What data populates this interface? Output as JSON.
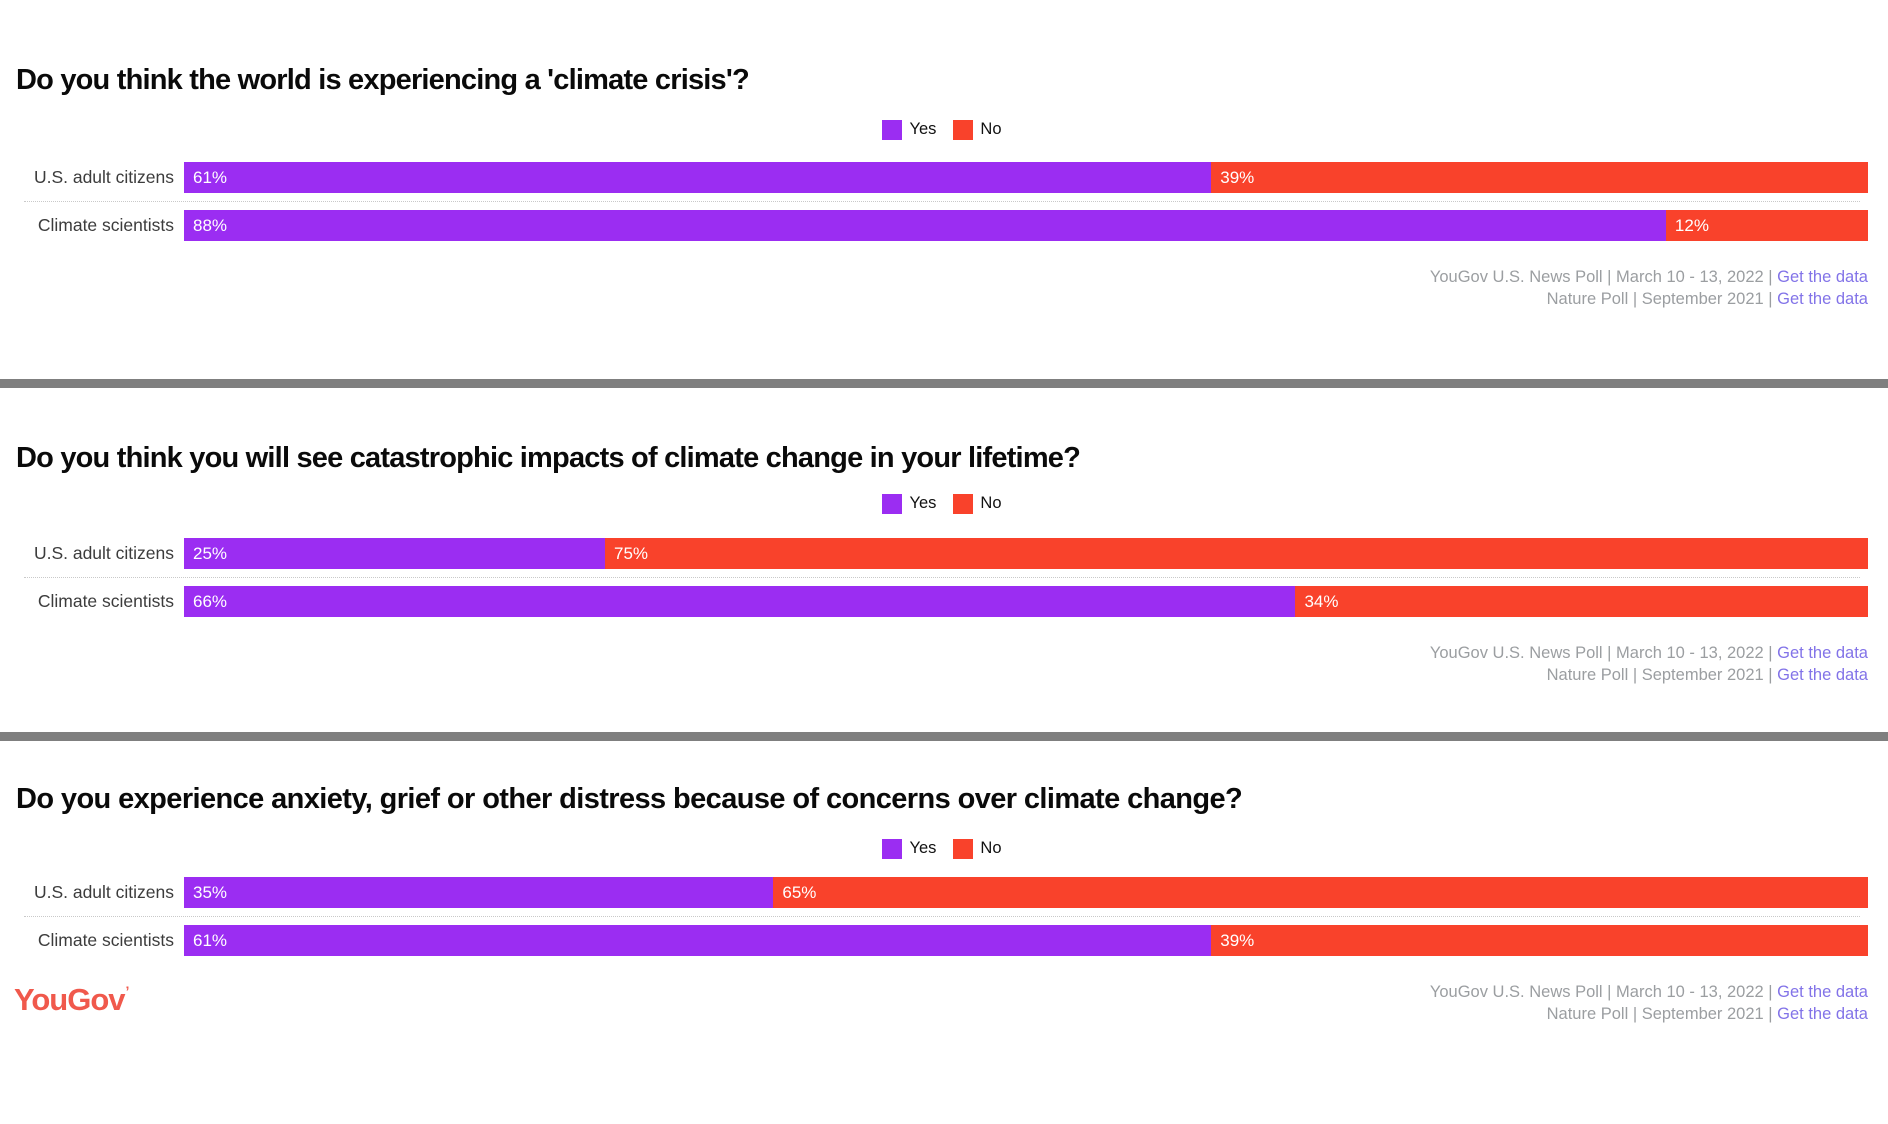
{
  "legend": {
    "yes_label": "Yes",
    "no_label": "No"
  },
  "colors": {
    "yes": "#9B2DF2",
    "no": "#F9422B",
    "separator": "#7F7F7F",
    "source_text": "#9B9EA1",
    "link": "#8273E8",
    "label": "#3C3C3C",
    "title": "#0A0A0A",
    "logo": "#F0594C",
    "divider": "#C9C9C9"
  },
  "charts": [
    {
      "title": "Do you think the world is experiencing a 'climate crisis'?",
      "rows": [
        {
          "label": "U.S. adult citizens",
          "yes_text": "61%",
          "no_text": "39%"
        },
        {
          "label": "Climate scientists",
          "yes_text": "88%",
          "no_text": "12%"
        }
      ],
      "source1": {
        "text": "YouGov U.S. News Poll | March 10 - 13, 2022 |",
        "link": "Get the data"
      },
      "source2": {
        "text": "Nature Poll | September 2021 |",
        "link": "Get the data"
      }
    },
    {
      "title": "Do you think you will see catastrophic impacts of climate change in your lifetime?",
      "rows": [
        {
          "label": "U.S. adult citizens",
          "yes_text": "25%",
          "no_text": "75%"
        },
        {
          "label": "Climate scientists",
          "yes_text": "66%",
          "no_text": "34%"
        }
      ],
      "source1": {
        "text": "YouGov U.S. News Poll | March 10 - 13, 2022 |",
        "link": "Get the data"
      },
      "source2": {
        "text": "Nature Poll | September 2021 |",
        "link": "Get the data"
      }
    },
    {
      "title": "Do you experience anxiety, grief or other distress because of concerns over climate change?",
      "rows": [
        {
          "label": "U.S. adult citizens",
          "yes_text": "35%",
          "no_text": "65%"
        },
        {
          "label": "Climate scientists",
          "yes_text": "61%",
          "no_text": "39%"
        }
      ],
      "source1": {
        "text": "YouGov U.S. News Poll | March 10 - 13, 2022 |",
        "link": "Get the data"
      },
      "source2": {
        "text": "Nature Poll | September 2021 |",
        "link": "Get the data"
      }
    }
  ],
  "footer": {
    "logo_text": "YouGov",
    "logo_mark": "’"
  },
  "chart_data": [
    {
      "type": "bar",
      "orientation": "horizontal",
      "stacked": true,
      "title": "Do you think the world is experiencing a 'climate crisis'?",
      "categories": [
        "U.S. adult citizens",
        "Climate scientists"
      ],
      "series": [
        {
          "name": "Yes",
          "color": "#9B2DF2",
          "values": [
            61,
            88
          ]
        },
        {
          "name": "No",
          "color": "#F9422B",
          "values": [
            39,
            12
          ]
        }
      ],
      "unit": "%",
      "xlim": [
        0,
        100
      ],
      "grid": false,
      "legend_position": "top-center",
      "value_labels": "inside-start",
      "sources": [
        "YouGov U.S. News Poll | March 10 - 13, 2022",
        "Nature Poll | September 2021"
      ]
    },
    {
      "type": "bar",
      "orientation": "horizontal",
      "stacked": true,
      "title": "Do you think you will see catastrophic impacts of climate change in your lifetime?",
      "categories": [
        "U.S. adult citizens",
        "Climate scientists"
      ],
      "series": [
        {
          "name": "Yes",
          "color": "#9B2DF2",
          "values": [
            25,
            66
          ]
        },
        {
          "name": "No",
          "color": "#F9422B",
          "values": [
            75,
            34
          ]
        }
      ],
      "unit": "%",
      "xlim": [
        0,
        100
      ],
      "grid": false,
      "legend_position": "top-center",
      "value_labels": "inside-start",
      "sources": [
        "YouGov U.S. News Poll | March 10 - 13, 2022",
        "Nature Poll | September 2021"
      ]
    },
    {
      "type": "bar",
      "orientation": "horizontal",
      "stacked": true,
      "title": "Do you experience anxiety, grief or other distress because of concerns over climate change?",
      "categories": [
        "U.S. adult citizens",
        "Climate scientists"
      ],
      "series": [
        {
          "name": "Yes",
          "color": "#9B2DF2",
          "values": [
            35,
            61
          ]
        },
        {
          "name": "No",
          "color": "#F9422B",
          "values": [
            65,
            39
          ]
        }
      ],
      "unit": "%",
      "xlim": [
        0,
        100
      ],
      "grid": false,
      "legend_position": "top-center",
      "value_labels": "inside-start",
      "sources": [
        "YouGov U.S. News Poll | March 10 - 13, 2022",
        "Nature Poll | September 2021"
      ]
    }
  ]
}
